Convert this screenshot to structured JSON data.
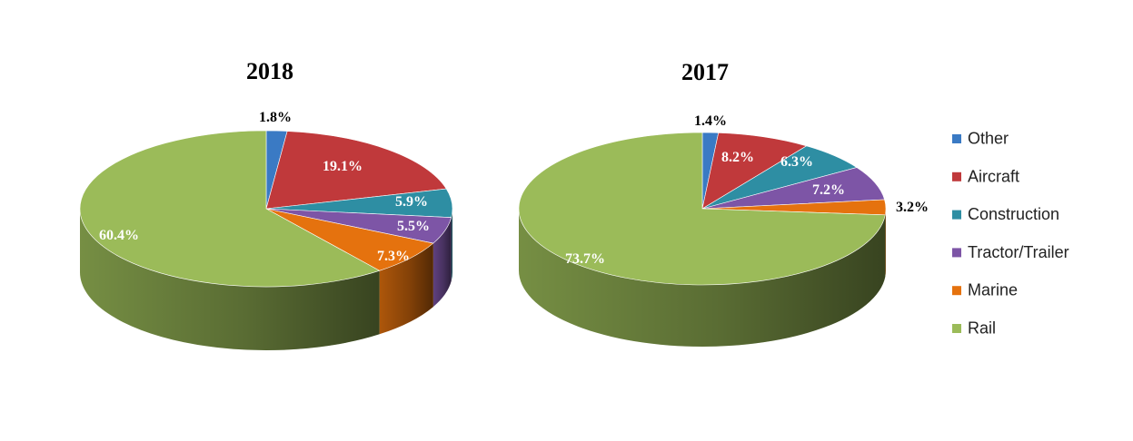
{
  "chart_data": [
    {
      "type": "pie",
      "title": "2018",
      "unit": "%",
      "series": [
        {
          "name": "Other",
          "value": 1.8,
          "label": "1.8%"
        },
        {
          "name": "Aircraft",
          "value": 19.1,
          "label": "19.1%"
        },
        {
          "name": "Construction",
          "value": 5.9,
          "label": "5.9%"
        },
        {
          "name": "Tractor/Trailer",
          "value": 5.5,
          "label": "5.5%"
        },
        {
          "name": "Marine",
          "value": 7.3,
          "label": "7.3%"
        },
        {
          "name": "Rail",
          "value": 60.4,
          "label": "60.4%"
        }
      ]
    },
    {
      "type": "pie",
      "title": "2017",
      "unit": "%",
      "series": [
        {
          "name": "Other",
          "value": 1.4,
          "label": "1.4%"
        },
        {
          "name": "Aircraft",
          "value": 8.2,
          "label": "8.2%"
        },
        {
          "name": "Construction",
          "value": 6.3,
          "label": "6.3%"
        },
        {
          "name": "Tractor/Trailer",
          "value": 7.2,
          "label": "7.2%"
        },
        {
          "name": "Marine",
          "value": 3.2,
          "label": "3.2%"
        },
        {
          "name": "Rail",
          "value": 73.7,
          "label": "73.7%"
        }
      ]
    }
  ],
  "legend": {
    "placement": "right",
    "items": [
      {
        "name": "Other",
        "color": "#3A7AC4"
      },
      {
        "name": "Aircraft",
        "color": "#C0393B"
      },
      {
        "name": "Construction",
        "color": "#2E8EA3"
      },
      {
        "name": "Tractor/Trailer",
        "color": "#7D55A6"
      },
      {
        "name": "Marine",
        "color": "#E5720E"
      },
      {
        "name": "Rail",
        "color": "#9BBB59"
      }
    ]
  }
}
